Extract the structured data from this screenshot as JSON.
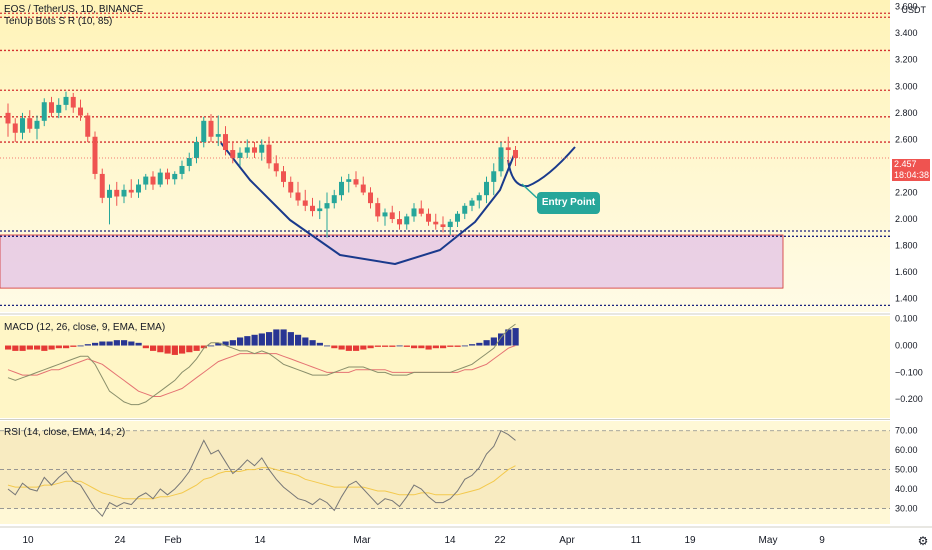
{
  "header": {
    "symbol_line": "EOS / TetherUS, 1D, BINANCE",
    "indicator_line": "TenUp Bots S R (10, 85)",
    "currency": "USDT"
  },
  "price_tag": {
    "price": "2.457",
    "countdown": "18:04:38"
  },
  "annotation": {
    "entry_label": "Entry Point"
  },
  "colors": {
    "up": "#26a69a",
    "down": "#ef5350",
    "curve": "#1a3a8c",
    "zone": "#e1bee7",
    "sr_red": "#d32f2f",
    "sr_navy": "#1a237e",
    "macd_pos": "#283593",
    "macd_neg": "#e53935",
    "macd_line": "#8a8f6b",
    "signal_line": "#e57373",
    "rsi_line": "#777777",
    "rsi_ema": "#f3c94d"
  },
  "x_axis": {
    "ticks": [
      "10",
      "24",
      "Feb",
      "14",
      "Mar",
      "14",
      "22",
      "Apr",
      "11",
      "19",
      "May",
      "9"
    ]
  },
  "chart_data": [
    {
      "type": "candlestick",
      "title": "EOS / TetherUS, 1D, BINANCE",
      "ylim": [
        1.3,
        3.65
      ],
      "y_ticks": [
        1.4,
        1.6,
        1.8,
        2.0,
        2.2,
        2.4,
        2.6,
        2.8,
        3.0,
        3.2,
        3.4,
        3.6
      ],
      "y_tick_labels": [
        "1.400",
        "1.600",
        "1.800",
        "2.000",
        "2.200",
        "2.400",
        "2.600",
        "2.800",
        "3.000",
        "3.200",
        "3.400",
        "3.600"
      ],
      "sr_levels": [
        {
          "value": 3.55,
          "color": "red"
        },
        {
          "value": 3.52,
          "color": "red"
        },
        {
          "value": 3.27,
          "color": "red"
        },
        {
          "value": 2.97,
          "color": "red"
        },
        {
          "value": 2.77,
          "color": "red"
        },
        {
          "value": 2.58,
          "color": "red"
        },
        {
          "value": 1.91,
          "color": "navy"
        },
        {
          "value": 1.87,
          "color": "navy"
        },
        {
          "value": 1.35,
          "color": "navy"
        }
      ],
      "zone": {
        "top": 1.88,
        "bottom": 1.48
      },
      "candles": [
        [
          2.8,
          2.87,
          2.62,
          2.72
        ],
        [
          2.72,
          2.76,
          2.58,
          2.65
        ],
        [
          2.65,
          2.8,
          2.6,
          2.76
        ],
        [
          2.76,
          2.82,
          2.65,
          2.68
        ],
        [
          2.68,
          2.78,
          2.6,
          2.74
        ],
        [
          2.74,
          2.91,
          2.7,
          2.88
        ],
        [
          2.88,
          2.92,
          2.77,
          2.8
        ],
        [
          2.8,
          2.91,
          2.76,
          2.86
        ],
        [
          2.86,
          2.96,
          2.82,
          2.92
        ],
        [
          2.92,
          2.95,
          2.8,
          2.84
        ],
        [
          2.84,
          2.9,
          2.74,
          2.78
        ],
        [
          2.78,
          2.8,
          2.58,
          2.62
        ],
        [
          2.62,
          2.66,
          2.3,
          2.34
        ],
        [
          2.34,
          2.38,
          2.12,
          2.16
        ],
        [
          2.16,
          2.26,
          1.96,
          2.22
        ],
        [
          2.22,
          2.28,
          2.1,
          2.17
        ],
        [
          2.17,
          2.26,
          2.12,
          2.22
        ],
        [
          2.22,
          2.3,
          2.16,
          2.2
        ],
        [
          2.2,
          2.3,
          2.16,
          2.26
        ],
        [
          2.26,
          2.34,
          2.22,
          2.32
        ],
        [
          2.32,
          2.36,
          2.22,
          2.26
        ],
        [
          2.26,
          2.38,
          2.24,
          2.35
        ],
        [
          2.35,
          2.38,
          2.26,
          2.3
        ],
        [
          2.3,
          2.36,
          2.26,
          2.34
        ],
        [
          2.34,
          2.44,
          2.3,
          2.4
        ],
        [
          2.4,
          2.5,
          2.36,
          2.46
        ],
        [
          2.46,
          2.62,
          2.42,
          2.58
        ],
        [
          2.58,
          2.77,
          2.54,
          2.74
        ],
        [
          2.74,
          2.79,
          2.58,
          2.62
        ],
        [
          2.62,
          2.78,
          2.55,
          2.64
        ],
        [
          2.64,
          2.7,
          2.48,
          2.52
        ],
        [
          2.52,
          2.58,
          2.42,
          2.46
        ],
        [
          2.46,
          2.54,
          2.4,
          2.5
        ],
        [
          2.5,
          2.6,
          2.46,
          2.54
        ],
        [
          2.54,
          2.58,
          2.46,
          2.5
        ],
        [
          2.5,
          2.6,
          2.44,
          2.56
        ],
        [
          2.56,
          2.62,
          2.38,
          2.42
        ],
        [
          2.42,
          2.48,
          2.32,
          2.36
        ],
        [
          2.36,
          2.4,
          2.24,
          2.28
        ],
        [
          2.28,
          2.32,
          2.16,
          2.2
        ],
        [
          2.2,
          2.28,
          2.1,
          2.14
        ],
        [
          2.14,
          2.22,
          2.06,
          2.1
        ],
        [
          2.1,
          2.16,
          2.02,
          2.06
        ],
        [
          2.06,
          2.14,
          2.0,
          2.08
        ],
        [
          2.08,
          2.2,
          1.86,
          2.12
        ],
        [
          2.12,
          2.22,
          2.08,
          2.18
        ],
        [
          2.18,
          2.32,
          2.14,
          2.28
        ],
        [
          2.28,
          2.34,
          2.2,
          2.3
        ],
        [
          2.3,
          2.36,
          2.24,
          2.26
        ],
        [
          2.26,
          2.32,
          2.18,
          2.2
        ],
        [
          2.2,
          2.24,
          2.08,
          2.12
        ],
        [
          2.12,
          2.16,
          1.98,
          2.02
        ],
        [
          2.02,
          2.08,
          1.95,
          2.05
        ],
        [
          2.05,
          2.1,
          1.97,
          2.0
        ],
        [
          2.0,
          2.06,
          1.92,
          1.96
        ],
        [
          1.96,
          2.04,
          1.92,
          2.02
        ],
        [
          2.02,
          2.12,
          1.98,
          2.08
        ],
        [
          2.08,
          2.14,
          2.02,
          2.04
        ],
        [
          2.04,
          2.08,
          1.95,
          1.98
        ],
        [
          1.98,
          2.04,
          1.92,
          1.96
        ],
        [
          1.96,
          2.02,
          1.9,
          1.94
        ],
        [
          1.94,
          2.0,
          1.88,
          1.98
        ],
        [
          1.98,
          2.06,
          1.94,
          2.04
        ],
        [
          2.04,
          2.12,
          2.0,
          2.1
        ],
        [
          2.1,
          2.16,
          2.06,
          2.14
        ],
        [
          2.14,
          2.2,
          2.08,
          2.18
        ],
        [
          2.18,
          2.32,
          2.12,
          2.28
        ],
        [
          2.28,
          2.42,
          2.18,
          2.36
        ],
        [
          2.36,
          2.58,
          2.32,
          2.54
        ],
        [
          2.54,
          2.62,
          2.42,
          2.52
        ],
        [
          2.52,
          2.55,
          2.4,
          2.46
        ]
      ]
    },
    {
      "type": "bar",
      "title": "MACD (12, 26, close, 9, EMA, EMA)",
      "ylim": [
        -0.27,
        0.11
      ],
      "y_ticks": [
        0.1,
        0.0,
        -0.1,
        -0.2
      ],
      "y_tick_labels": [
        "0.100",
        "0.000",
        "−0.100",
        "−0.200"
      ],
      "histogram": [
        -0.015,
        -0.02,
        -0.02,
        -0.015,
        -0.015,
        -0.02,
        -0.015,
        -0.01,
        -0.01,
        -0.005,
        0.0,
        0.005,
        0.01,
        0.015,
        0.015,
        0.02,
        0.02,
        0.015,
        0.01,
        -0.01,
        -0.02,
        -0.025,
        -0.03,
        -0.035,
        -0.03,
        -0.025,
        -0.02,
        -0.01,
        0.0,
        0.01,
        0.015,
        0.02,
        0.03,
        0.035,
        0.04,
        0.045,
        0.05,
        0.06,
        0.06,
        0.05,
        0.04,
        0.03,
        0.02,
        0.01,
        0.0,
        -0.01,
        -0.015,
        -0.02,
        -0.02,
        -0.015,
        -0.01,
        -0.005,
        -0.005,
        -0.005,
        0.0,
        -0.005,
        -0.01,
        -0.01,
        -0.015,
        -0.01,
        -0.01,
        -0.005,
        -0.005,
        0.0,
        0.005,
        0.01,
        0.02,
        0.03,
        0.045,
        0.06,
        0.065
      ],
      "macd_line": [
        -0.12,
        -0.13,
        -0.12,
        -0.11,
        -0.1,
        -0.09,
        -0.08,
        -0.07,
        -0.06,
        -0.05,
        -0.04,
        -0.04,
        -0.07,
        -0.12,
        -0.17,
        -0.19,
        -0.21,
        -0.22,
        -0.22,
        -0.21,
        -0.19,
        -0.17,
        -0.15,
        -0.13,
        -0.1,
        -0.08,
        -0.05,
        -0.01,
        0.01,
        0.01,
        0.0,
        -0.01,
        -0.02,
        -0.02,
        -0.03,
        -0.02,
        -0.03,
        -0.05,
        -0.07,
        -0.08,
        -0.09,
        -0.1,
        -0.11,
        -0.11,
        -0.11,
        -0.1,
        -0.09,
        -0.08,
        -0.08,
        -0.08,
        -0.09,
        -0.1,
        -0.1,
        -0.11,
        -0.11,
        -0.11,
        -0.1,
        -0.1,
        -0.1,
        -0.1,
        -0.1,
        -0.1,
        -0.09,
        -0.08,
        -0.07,
        -0.05,
        -0.03,
        -0.01,
        0.03,
        0.06,
        0.08
      ],
      "signal_line": [
        -0.09,
        -0.1,
        -0.11,
        -0.11,
        -0.11,
        -0.1,
        -0.09,
        -0.09,
        -0.08,
        -0.07,
        -0.06,
        -0.05,
        -0.06,
        -0.07,
        -0.09,
        -0.11,
        -0.13,
        -0.15,
        -0.17,
        -0.18,
        -0.19,
        -0.19,
        -0.18,
        -0.17,
        -0.16,
        -0.14,
        -0.12,
        -0.1,
        -0.08,
        -0.06,
        -0.05,
        -0.04,
        -0.03,
        -0.03,
        -0.03,
        -0.03,
        -0.03,
        -0.03,
        -0.04,
        -0.05,
        -0.06,
        -0.07,
        -0.08,
        -0.09,
        -0.1,
        -0.1,
        -0.1,
        -0.1,
        -0.09,
        -0.09,
        -0.09,
        -0.09,
        -0.09,
        -0.1,
        -0.1,
        -0.1,
        -0.1,
        -0.1,
        -0.1,
        -0.1,
        -0.1,
        -0.1,
        -0.1,
        -0.09,
        -0.09,
        -0.08,
        -0.07,
        -0.05,
        -0.03,
        -0.01,
        0.0
      ]
    },
    {
      "type": "line",
      "title": "RSI (14, close, EMA, 14, 2)",
      "ylim": [
        22,
        75
      ],
      "y_ticks": [
        70,
        60,
        50,
        40,
        30
      ],
      "y_tick_labels": [
        "70.00",
        "60.00",
        "50.00",
        "40.00",
        "30.00"
      ],
      "band": [
        30,
        70
      ],
      "mid": 50,
      "rsi": [
        40,
        37,
        43,
        40,
        39,
        46,
        42,
        46,
        49,
        44,
        42,
        36,
        30,
        26,
        33,
        31,
        33,
        32,
        36,
        38,
        35,
        40,
        37,
        40,
        44,
        49,
        57,
        65,
        58,
        60,
        54,
        48,
        51,
        55,
        52,
        56,
        50,
        45,
        41,
        38,
        35,
        34,
        32,
        35,
        33,
        29,
        36,
        42,
        44,
        40,
        36,
        32,
        35,
        34,
        31,
        36,
        42,
        40,
        36,
        33,
        33,
        35,
        39,
        45,
        47,
        51,
        58,
        62,
        70,
        68,
        65
      ],
      "rsi_ema": [
        42,
        41,
        41,
        41,
        41,
        42,
        42,
        43,
        44,
        44,
        44,
        42,
        40,
        38,
        37,
        36,
        35,
        35,
        35,
        35,
        35,
        36,
        36,
        37,
        38,
        40,
        42,
        45,
        46,
        48,
        49,
        49,
        49,
        50,
        50,
        51,
        51,
        50,
        49,
        48,
        47,
        45,
        44,
        43,
        42,
        41,
        41,
        41,
        41,
        41,
        40,
        39,
        39,
        38,
        37,
        37,
        37,
        38,
        38,
        37,
        37,
        37,
        37,
        38,
        39,
        40,
        42,
        44,
        47,
        50,
        52
      ]
    }
  ]
}
